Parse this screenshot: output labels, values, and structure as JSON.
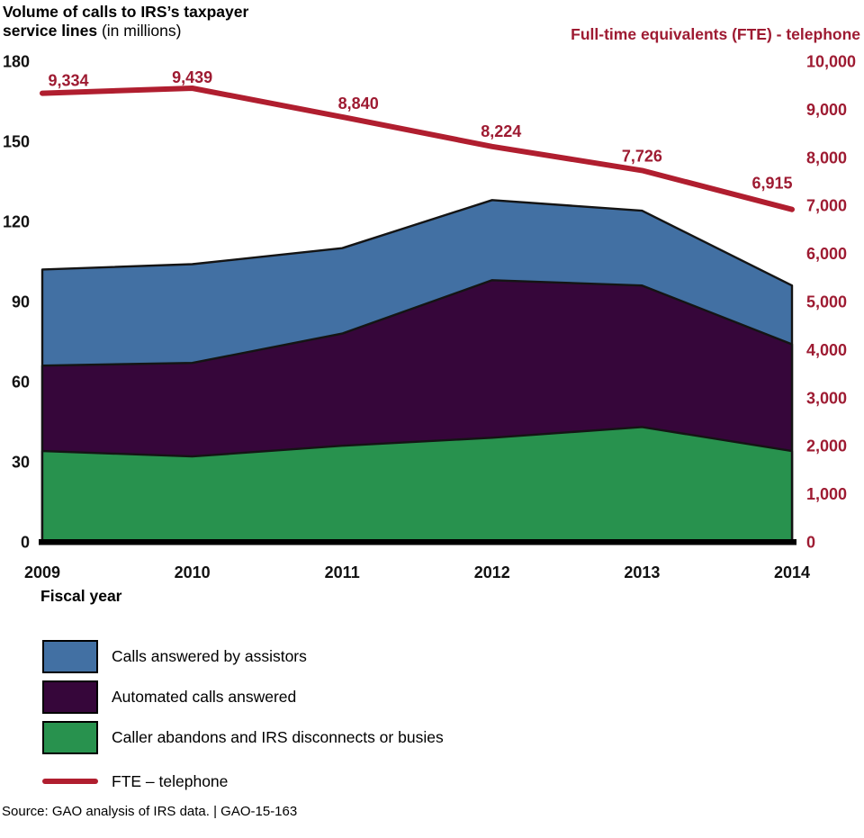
{
  "header": {
    "title_bold": "Volume of calls to IRS’s taxpayer service lines",
    "title_suffix": " (in millions)",
    "right_axis_title": "Full-time equivalents (FTE) - telephone",
    "right_axis_title_color": "#9E1B32"
  },
  "chart_data": {
    "type": "area",
    "subtype": "stacked-area-with-secondary-line",
    "title": "Volume of calls to IRS’s taxpayer service lines (in millions)",
    "xlabel": "Fiscal year",
    "categories": [
      "2009",
      "2010",
      "2011",
      "2012",
      "2013",
      "2014"
    ],
    "x_label": "Fiscal year",
    "grid": "off",
    "legend_position": "bottom-left",
    "outline_color": "#141414",
    "left_axis": {
      "min": 0,
      "max": 180,
      "step": 30,
      "tick_labels": [
        "0",
        "30",
        "60",
        "90",
        "120",
        "150",
        "180"
      ],
      "color": "#111111"
    },
    "right_axis": {
      "min": 0,
      "max": 10000,
      "step": 1000,
      "tick_labels": [
        "0",
        "1,000",
        "2,000",
        "3,000",
        "4,000",
        "5,000",
        "6,000",
        "7,000",
        "8,000",
        "9,000",
        "10,000"
      ],
      "color": "#9E1B32",
      "title": "Full-time equivalents (FTE) - telephone"
    },
    "stacked_series": [
      {
        "name": "Caller abandons and IRS disconnects or busies",
        "color": "#28924E",
        "values": [
          34,
          32,
          36,
          39,
          43,
          34
        ]
      },
      {
        "name": "Automated calls answered",
        "color": "#36063A",
        "values": [
          32,
          35,
          42,
          59,
          53,
          40
        ]
      },
      {
        "name": "Calls answered by assistors",
        "color": "#4270A3",
        "values": [
          36,
          37,
          32,
          30,
          28,
          22
        ]
      }
    ],
    "line_series": {
      "name": "FTE – telephone",
      "axis": "right",
      "color": "#B01E2F",
      "label_color": "#9E1B32",
      "values": [
        9334,
        9439,
        8840,
        8224,
        7726,
        6915
      ],
      "labels": [
        "9,334",
        "9,439",
        "8,840",
        "8,224",
        "7,726",
        "6,915"
      ]
    }
  },
  "legend": {
    "items": [
      {
        "label": "Calls answered by assistors",
        "swatch": "square",
        "color": "#4270A3"
      },
      {
        "label": "Automated calls answered",
        "swatch": "square",
        "color": "#36063A"
      },
      {
        "label": "Caller abandons and IRS disconnects or busies",
        "swatch": "square",
        "color": "#28924E"
      },
      {
        "label": "FTE – telephone",
        "swatch": "line",
        "color": "#B01E2F"
      }
    ]
  },
  "source": "Source: GAO analysis of IRS data. | GAO-15-163"
}
